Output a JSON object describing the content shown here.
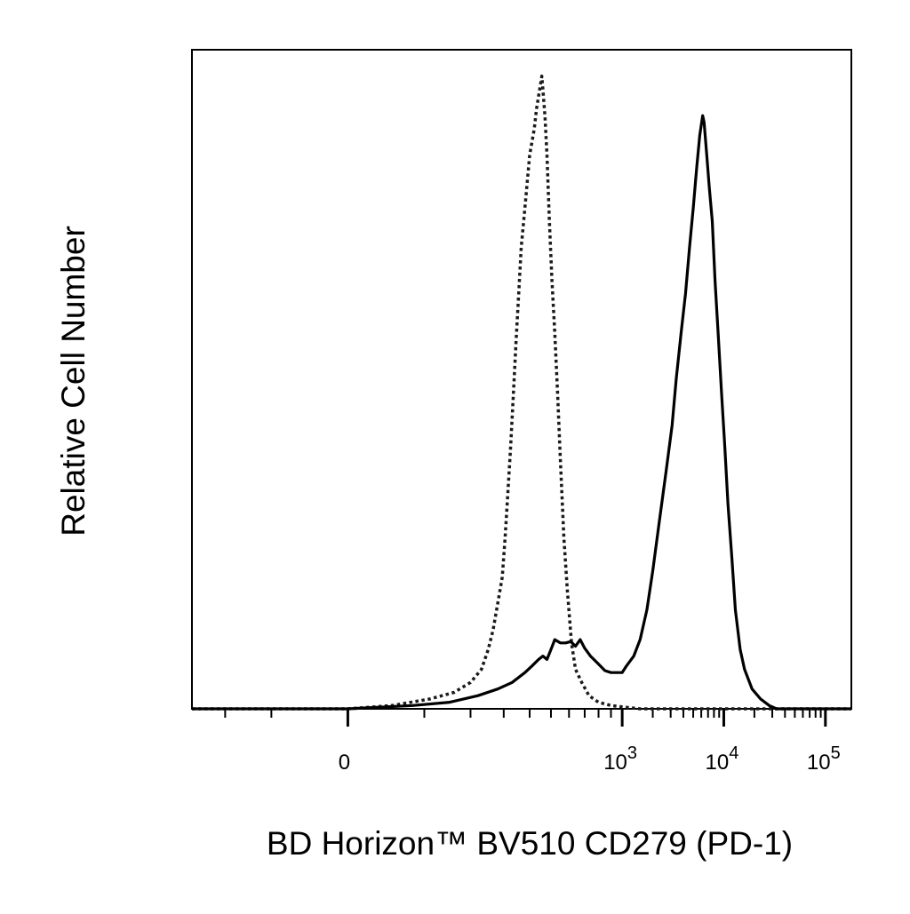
{
  "chart_data": {
    "type": "line",
    "title": "",
    "xlabel": "BD Horizon™ BV510 CD279 (PD-1)",
    "ylabel": "Relative Cell Number",
    "x_scale": "biexponential",
    "x_ticks": [
      {
        "label": "0",
        "value": 0
      },
      {
        "label": "10",
        "sup": "3",
        "value": 1000
      },
      {
        "label": "10",
        "sup": "4",
        "value": 10000
      },
      {
        "label": "10",
        "sup": "5",
        "value": 100000
      }
    ],
    "xlim": [
      -300,
      180000
    ],
    "ylim": [
      0,
      100
    ],
    "grid": false,
    "legend": "none",
    "series": [
      {
        "style": "dotted",
        "color": "#1a1a1a",
        "points": [
          [
            -300,
            0
          ],
          [
            0,
            0
          ],
          [
            50,
            0.5
          ],
          [
            110,
            1.5
          ],
          [
            160,
            2.5
          ],
          [
            200,
            4
          ],
          [
            230,
            6
          ],
          [
            250,
            9
          ],
          [
            265,
            12
          ],
          [
            280,
            16
          ],
          [
            295,
            20
          ],
          [
            305,
            26
          ],
          [
            315,
            33
          ],
          [
            325,
            40
          ],
          [
            335,
            48
          ],
          [
            345,
            56
          ],
          [
            355,
            63
          ],
          [
            365,
            70
          ],
          [
            375,
            74
          ],
          [
            385,
            78
          ],
          [
            400,
            84
          ],
          [
            410,
            86
          ],
          [
            420,
            88
          ],
          [
            430,
            91
          ],
          [
            440,
            93
          ],
          [
            450,
            95
          ],
          [
            455,
            96
          ],
          [
            460,
            94
          ],
          [
            470,
            90
          ],
          [
            480,
            84
          ],
          [
            492,
            74
          ],
          [
            505,
            65
          ],
          [
            520,
            57
          ],
          [
            535,
            48
          ],
          [
            550,
            38
          ],
          [
            570,
            26
          ],
          [
            590,
            18
          ],
          [
            615,
            10
          ],
          [
            640,
            6
          ],
          [
            680,
            4
          ],
          [
            730,
            2
          ],
          [
            800,
            1
          ],
          [
            900,
            0.5
          ],
          [
            1000,
            0.3
          ],
          [
            1500,
            0
          ],
          [
            180000,
            0
          ]
        ]
      },
      {
        "style": "solid",
        "color": "#000000",
        "points": [
          [
            -300,
            0
          ],
          [
            0,
            0
          ],
          [
            80,
            0.5
          ],
          [
            150,
            1
          ],
          [
            220,
            2
          ],
          [
            280,
            3
          ],
          [
            330,
            4
          ],
          [
            380,
            5.5
          ],
          [
            410,
            6.5
          ],
          [
            440,
            7.5
          ],
          [
            460,
            8
          ],
          [
            480,
            7.5
          ],
          [
            500,
            9
          ],
          [
            520,
            10.5
          ],
          [
            550,
            10
          ],
          [
            580,
            10
          ],
          [
            610,
            10.2
          ],
          [
            640,
            9.5
          ],
          [
            670,
            10.5
          ],
          [
            700,
            9.2
          ],
          [
            740,
            8
          ],
          [
            790,
            7
          ],
          [
            850,
            5.8
          ],
          [
            900,
            5.5
          ],
          [
            1000,
            5.5
          ],
          [
            1100,
            6.5
          ],
          [
            1300,
            8
          ],
          [
            1500,
            10.5
          ],
          [
            1750,
            15
          ],
          [
            2000,
            21
          ],
          [
            2300,
            28
          ],
          [
            2700,
            36
          ],
          [
            3100,
            43
          ],
          [
            3400,
            50
          ],
          [
            3800,
            57
          ],
          [
            4200,
            63
          ],
          [
            4600,
            70
          ],
          [
            5000,
            76
          ],
          [
            5400,
            82
          ],
          [
            5800,
            87
          ],
          [
            6200,
            90
          ],
          [
            6400,
            89
          ],
          [
            6800,
            84
          ],
          [
            7200,
            79
          ],
          [
            7700,
            74
          ],
          [
            8200,
            65
          ],
          [
            8800,
            57
          ],
          [
            9500,
            48
          ],
          [
            10200,
            40
          ],
          [
            11000,
            31
          ],
          [
            12000,
            23
          ],
          [
            13000,
            15
          ],
          [
            14500,
            9
          ],
          [
            16000,
            6
          ],
          [
            19000,
            3
          ],
          [
            23000,
            1.5
          ],
          [
            28000,
            0.5
          ],
          [
            33000,
            0
          ],
          [
            180000,
            0
          ]
        ]
      }
    ]
  }
}
